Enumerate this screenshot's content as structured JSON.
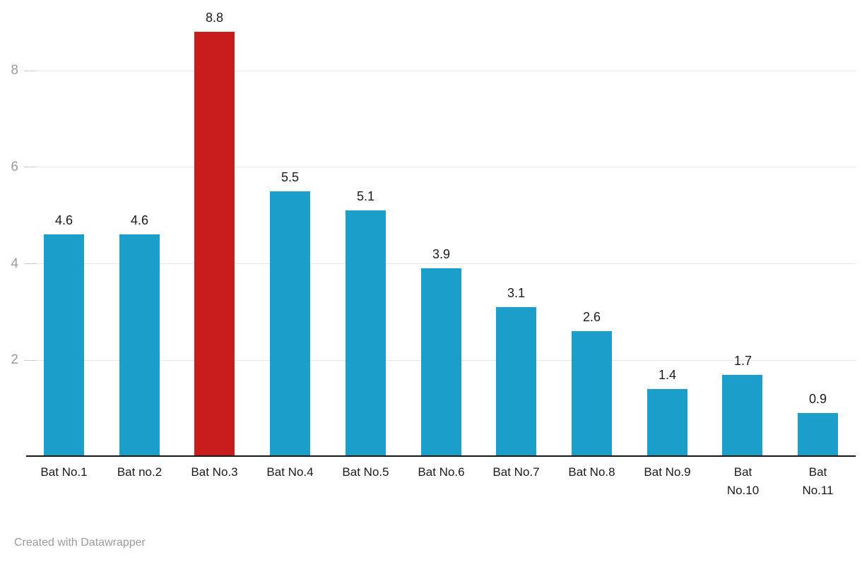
{
  "chart_data": {
    "type": "bar",
    "categories": [
      "Bat No.1",
      "Bat no.2",
      "Bat No.3",
      "Bat No.4",
      "Bat No.5",
      "Bat No.6",
      "Bat No.7",
      "Bat No.8",
      "Bat No.9",
      "Bat No.10",
      "Bat No.11"
    ],
    "tick_labels": [
      "Bat No.1",
      "Bat no.2",
      "Bat No.3",
      "Bat No.4",
      "Bat No.5",
      "Bat No.6",
      "Bat No.7",
      "Bat No.8",
      "Bat No.9",
      "Bat\nNo.10",
      "Bat\nNo.11"
    ],
    "values": [
      4.6,
      4.6,
      8.8,
      5.5,
      5.1,
      3.9,
      3.1,
      2.6,
      1.4,
      1.7,
      0.9
    ],
    "value_labels": [
      "4.6",
      "4.6",
      "8.8",
      "5.5",
      "5.1",
      "3.9",
      "3.1",
      "2.6",
      "1.4",
      "1.7",
      "0.9"
    ],
    "highlight_index": 2,
    "title": "",
    "xlabel": "",
    "ylabel": "",
    "y_ticks": [
      2,
      4,
      6,
      8
    ],
    "ylim": [
      0,
      9.46
    ],
    "grid": "horizontal",
    "legend": "none",
    "colors": {
      "bar_default": "#1b9ec9",
      "bar_highlight": "#c71e1d",
      "gridline": "#e8e8e8",
      "tick_mark": "#c9c9c9",
      "axis_line": "#161616",
      "y_label_text": "#9b9b9b",
      "value_label_text": "#1a1a1a",
      "x_label_text": "#1a1a1a"
    }
  },
  "footer": {
    "credit": "Created with Datawrapper"
  }
}
